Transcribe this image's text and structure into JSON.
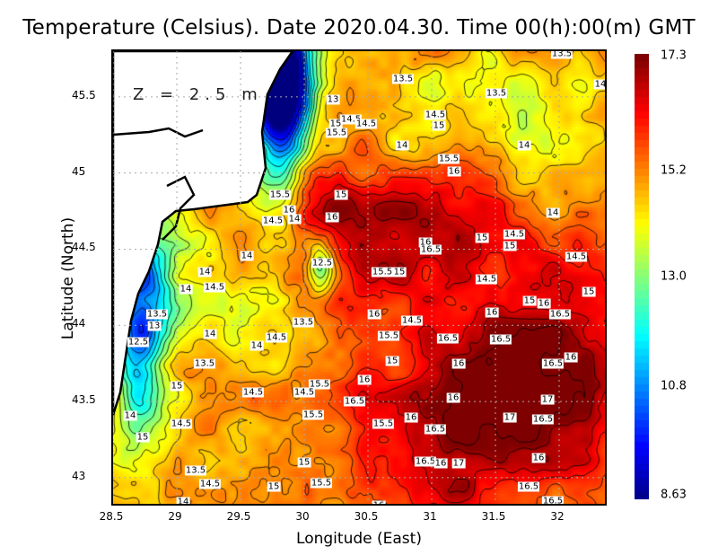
{
  "title": "Temperature (Celsius). Date 2020.04.30. Time 00(h):00(m) GMT",
  "depth_label": "Z = 2.5 m",
  "x_axis": {
    "label": "Longitude (East)",
    "ticks": [
      "28.5",
      "29",
      "29.5",
      "30",
      "30.5",
      "31",
      "31.5",
      "32"
    ],
    "range": [
      28.5,
      32.4
    ]
  },
  "y_axis": {
    "label": "Latitude (North)",
    "ticks": [
      "45.5",
      "45",
      "44.5",
      "44",
      "43.5",
      "43"
    ],
    "range": [
      42.8,
      45.8
    ]
  },
  "colorbar": {
    "ticks": [
      "17.3",
      "15.2",
      "13.0",
      "10.8",
      "8.63"
    ],
    "min": 8.63,
    "max": 17.3,
    "colormap": "jet"
  },
  "contour_interval": 0.5,
  "contour_labels": [
    "13.5",
    "13.5",
    "13",
    "14.5",
    "14.5",
    "15",
    "15.5",
    "14.5",
    "15",
    "14",
    "14",
    "15.5",
    "16",
    "15.5",
    "15",
    "16",
    "14.5",
    "14",
    "16",
    "14",
    "15",
    "14.5",
    "15",
    "16",
    "16.5",
    "14",
    "14.5",
    "12.5",
    "14",
    "15.5",
    "15",
    "14.5",
    "14",
    "14.5",
    "15",
    "15",
    "16",
    "13.5",
    "13",
    "16",
    "16",
    "14.5",
    "16.5",
    "13.5",
    "14.5",
    "15.5",
    "16.5",
    "16.5",
    "12.5",
    "14",
    "14",
    "15",
    "16",
    "16.5",
    "16",
    "13.5",
    "15",
    "16",
    "15.5",
    "14.5",
    "14.5",
    "16.5",
    "16",
    "17",
    "14",
    "14.5",
    "15.5",
    "16",
    "15.5",
    "16.5",
    "17",
    "16.5",
    "15",
    "15",
    "16.5",
    "16",
    "17",
    "16",
    "13.5",
    "14.5",
    "15",
    "15.5",
    "16.5",
    "14",
    "16.5",
    "13.5",
    "14",
    "16"
  ]
}
